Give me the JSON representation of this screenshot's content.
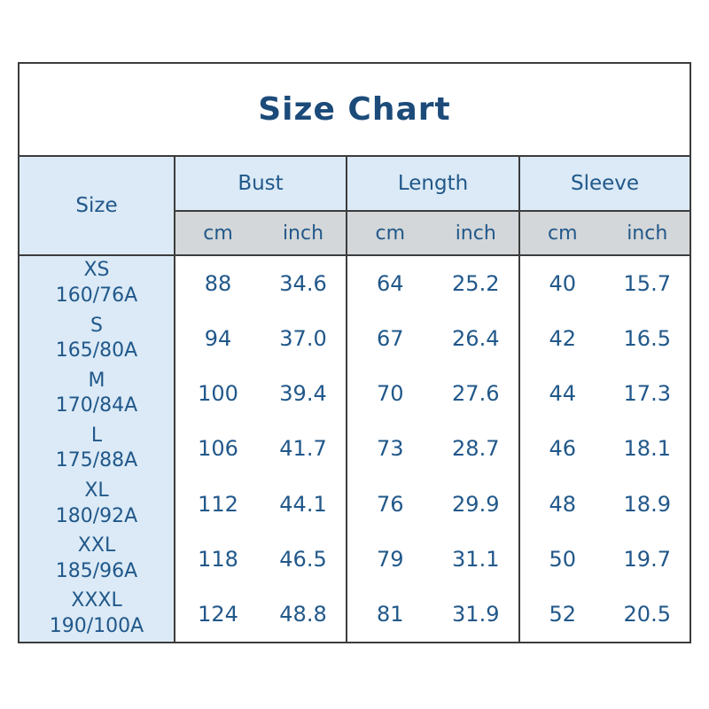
{
  "title": "Size Chart",
  "table": {
    "size_header": "Size",
    "groups": [
      "Bust",
      "Length",
      "Sleeve"
    ],
    "units": {
      "cm": "cm",
      "inch": "inch"
    },
    "rows": [
      {
        "size": "XS",
        "spec": "160/76A",
        "bust_cm": "88",
        "bust_inch": "34.6",
        "length_cm": "64",
        "length_inch": "25.2",
        "sleeve_cm": "40",
        "sleeve_inch": "15.7"
      },
      {
        "size": "S",
        "spec": "165/80A",
        "bust_cm": "94",
        "bust_inch": "37.0",
        "length_cm": "67",
        "length_inch": "26.4",
        "sleeve_cm": "42",
        "sleeve_inch": "16.5"
      },
      {
        "size": "M",
        "spec": "170/84A",
        "bust_cm": "100",
        "bust_inch": "39.4",
        "length_cm": "70",
        "length_inch": "27.6",
        "sleeve_cm": "44",
        "sleeve_inch": "17.3"
      },
      {
        "size": "L",
        "spec": "175/88A",
        "bust_cm": "106",
        "bust_inch": "41.7",
        "length_cm": "73",
        "length_inch": "28.7",
        "sleeve_cm": "46",
        "sleeve_inch": "18.1"
      },
      {
        "size": "XL",
        "spec": "180/92A",
        "bust_cm": "112",
        "bust_inch": "44.1",
        "length_cm": "76",
        "length_inch": "29.9",
        "sleeve_cm": "48",
        "sleeve_inch": "18.9"
      },
      {
        "size": "XXL",
        "spec": "185/96A",
        "bust_cm": "118",
        "bust_inch": "46.5",
        "length_cm": "79",
        "length_inch": "31.1",
        "sleeve_cm": "50",
        "sleeve_inch": "19.7"
      },
      {
        "size": "XXXL",
        "spec": "190/100A",
        "bust_cm": "124",
        "bust_inch": "48.8",
        "length_cm": "81",
        "length_inch": "31.9",
        "sleeve_cm": "52",
        "sleeve_inch": "20.5"
      }
    ]
  },
  "chart_data": {
    "type": "table",
    "title": "Size Chart",
    "columns": [
      "Size",
      "Bust cm",
      "Bust inch",
      "Length cm",
      "Length inch",
      "Sleeve cm",
      "Sleeve inch"
    ],
    "rows": [
      [
        "XS 160/76A",
        88,
        34.6,
        64,
        25.2,
        40,
        15.7
      ],
      [
        "S 165/80A",
        94,
        37.0,
        67,
        26.4,
        42,
        16.5
      ],
      [
        "M 170/84A",
        100,
        39.4,
        70,
        27.6,
        44,
        17.3
      ],
      [
        "L 175/88A",
        106,
        41.7,
        73,
        28.7,
        46,
        18.1
      ],
      [
        "XL 180/92A",
        112,
        44.1,
        76,
        29.9,
        48,
        18.9
      ],
      [
        "XXL 185/96A",
        118,
        46.5,
        79,
        31.1,
        50,
        19.7
      ],
      [
        "XXXL 190/100A",
        124,
        48.8,
        81,
        31.9,
        52,
        20.5
      ]
    ]
  },
  "colors": {
    "title_text": "#1c4b7a",
    "cell_text": "#21588a",
    "header_bg_blue": "#dbeaf6",
    "units_bg_gray": "#d4d7d9",
    "size_column_bg": "#dbeaf6",
    "border": "#3c3c3c",
    "background": "#ffffff"
  }
}
